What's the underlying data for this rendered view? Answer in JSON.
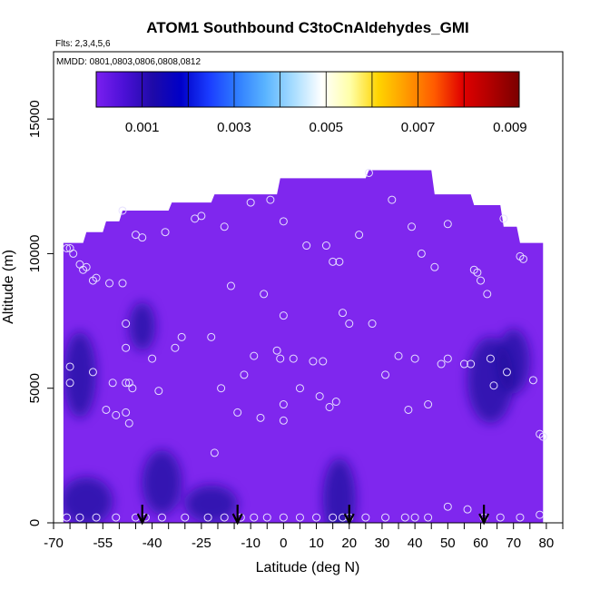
{
  "chart_data": {
    "type": "heatmap",
    "title": "ATOM1 Southbound C3toCnAldehydes_GMI",
    "flights_note": "Flts: 2,3,4,5,6",
    "dates_note": "MMDD: 0801,0803,0806,0808,0812",
    "xlabel": "Latitude (deg N)",
    "ylabel": "Altitude (m)",
    "xlim": [
      -70,
      85
    ],
    "ylim": [
      0,
      17500
    ],
    "x_ticks": [
      "-70",
      "-55",
      "-40",
      "-25",
      "-10",
      "0",
      "10",
      "20",
      "30",
      "40",
      "50",
      "60",
      "70",
      "80"
    ],
    "x_tick_values": [
      -70,
      -55,
      -40,
      -25,
      -10,
      0,
      10,
      20,
      30,
      40,
      50,
      60,
      70,
      80
    ],
    "x_minor_ticks": [
      -65,
      -60,
      -50,
      -45,
      -35,
      -30,
      -20,
      -15,
      -5,
      5,
      15,
      25,
      35,
      45,
      55,
      65,
      75,
      85
    ],
    "y_ticks": [
      "0",
      "5000",
      "10000",
      "15000"
    ],
    "y_tick_values": [
      0,
      5000,
      10000,
      15000
    ],
    "colorbar": {
      "range": [
        0,
        0.0092
      ],
      "tick_labels": [
        "0.001",
        "0.003",
        "0.005",
        "0.007",
        "0.009"
      ],
      "tick_values": [
        0.001,
        0.003,
        0.005,
        0.007,
        0.009
      ],
      "colors": [
        "#7a1ff0",
        "#4b10d6",
        "#1e0aa8",
        "#0000c8",
        "#1a3cff",
        "#2f7dff",
        "#5ab4ff",
        "#a8ddff",
        "#ffffff",
        "#ffffa8",
        "#ffd400",
        "#ff9a00",
        "#ff5a00",
        "#e00000",
        "#b00000",
        "#7a0000"
      ]
    },
    "background_color": "#7f27ee",
    "dark_color": "#1c0a9e",
    "curtain_profile": [
      {
        "lat": -67,
        "top": 10400
      },
      {
        "lat": -61,
        "top": 10400
      },
      {
        "lat": -60,
        "top": 10800
      },
      {
        "lat": -55,
        "top": 10800
      },
      {
        "lat": -54,
        "top": 11200
      },
      {
        "lat": -50,
        "top": 11200
      },
      {
        "lat": -49,
        "top": 11600
      },
      {
        "lat": -35,
        "top": 11600
      },
      {
        "lat": -34,
        "top": 11900
      },
      {
        "lat": -22,
        "top": 11900
      },
      {
        "lat": -21,
        "top": 12200
      },
      {
        "lat": -2,
        "top": 12200
      },
      {
        "lat": -1,
        "top": 12800
      },
      {
        "lat": 25,
        "top": 12800
      },
      {
        "lat": 26,
        "top": 13100
      },
      {
        "lat": 45,
        "top": 13100
      },
      {
        "lat": 46,
        "top": 12200
      },
      {
        "lat": 57,
        "top": 12200
      },
      {
        "lat": 58,
        "top": 11800
      },
      {
        "lat": 66,
        "top": 11800
      },
      {
        "lat": 67,
        "top": 11000
      },
      {
        "lat": 71,
        "top": 11000
      },
      {
        "lat": 72,
        "top": 10400
      },
      {
        "lat": 79,
        "top": 10400
      }
    ],
    "dark_regions": [
      {
        "lat": -43,
        "alt": 7300,
        "rlat": 4,
        "ralt": 900
      },
      {
        "lat": -62,
        "alt": 5500,
        "rlat": 5,
        "ralt": 1600
      },
      {
        "lat": 63,
        "alt": 5300,
        "rlat": 7,
        "ralt": 1600
      },
      {
        "lat": 70,
        "alt": 6000,
        "rlat": 5,
        "ralt": 1200
      },
      {
        "lat": -22,
        "alt": 700,
        "rlat": 8,
        "ralt": 700
      },
      {
        "lat": -60,
        "alt": 800,
        "rlat": 8,
        "ralt": 900
      },
      {
        "lat": 17,
        "alt": 900,
        "rlat": 5,
        "ralt": 1500
      },
      {
        "lat": -37,
        "alt": 1500,
        "rlat": 6,
        "ralt": 1200
      }
    ],
    "arrows_lat": [
      -43,
      -14,
      20,
      61
    ],
    "points": [
      [
        -66,
        10200
      ],
      [
        -65,
        10200
      ],
      [
        -64,
        10000
      ],
      [
        -62,
        9600
      ],
      [
        -61,
        9400
      ],
      [
        -60,
        9500
      ],
      [
        -58,
        9000
      ],
      [
        -57,
        9100
      ],
      [
        -53,
        8900
      ],
      [
        -49,
        8900
      ],
      [
        -49,
        11600
      ],
      [
        -48,
        7400
      ],
      [
        -48,
        6500
      ],
      [
        -48,
        5200
      ],
      [
        -47,
        5200
      ],
      [
        -47,
        3700
      ],
      [
        -45,
        10700
      ],
      [
        -43,
        10600
      ],
      [
        -40,
        6100
      ],
      [
        -38,
        4900
      ],
      [
        -36,
        10800
      ],
      [
        -33,
        6500
      ],
      [
        -31,
        6900
      ],
      [
        -27,
        11300
      ],
      [
        -25,
        11400
      ],
      [
        -22,
        6900
      ],
      [
        -21,
        2600
      ],
      [
        -19,
        5000
      ],
      [
        -18,
        11000
      ],
      [
        -16,
        8800
      ],
      [
        -14,
        4100
      ],
      [
        -12,
        5500
      ],
      [
        -10,
        11900
      ],
      [
        -9,
        6200
      ],
      [
        -7,
        3900
      ],
      [
        -6,
        8500
      ],
      [
        -4,
        12000
      ],
      [
        -2,
        6400
      ],
      [
        -1,
        6100
      ],
      [
        0,
        7700
      ],
      [
        0,
        4400
      ],
      [
        0,
        3800
      ],
      [
        0,
        11200
      ],
      [
        3,
        6100
      ],
      [
        5,
        5000
      ],
      [
        7,
        10300
      ],
      [
        9,
        6000
      ],
      [
        11,
        4700
      ],
      [
        12,
        6000
      ],
      [
        13,
        10300
      ],
      [
        14,
        4300
      ],
      [
        15,
        9700
      ],
      [
        16,
        4500
      ],
      [
        17,
        9700
      ],
      [
        18,
        7800
      ],
      [
        20,
        7400
      ],
      [
        23,
        10700
      ],
      [
        26,
        13000
      ],
      [
        27,
        7400
      ],
      [
        31,
        5500
      ],
      [
        33,
        12000
      ],
      [
        35,
        6200
      ],
      [
        38,
        4200
      ],
      [
        39,
        11000
      ],
      [
        40,
        6100
      ],
      [
        42,
        10000
      ],
      [
        44,
        4400
      ],
      [
        46,
        9500
      ],
      [
        48,
        5900
      ],
      [
        50,
        11100
      ],
      [
        50,
        6100
      ],
      [
        55,
        5900
      ],
      [
        57,
        5900
      ],
      [
        58,
        9400
      ],
      [
        59,
        9300
      ],
      [
        60,
        9000
      ],
      [
        62,
        8500
      ],
      [
        63,
        6100
      ],
      [
        64,
        5100
      ],
      [
        67,
        11300
      ],
      [
        68,
        5600
      ],
      [
        72,
        9900
      ],
      [
        73,
        9800
      ],
      [
        76,
        5300
      ],
      [
        78,
        3300
      ],
      [
        79,
        3200
      ],
      [
        -65,
        5800
      ],
      [
        -65,
        5200
      ],
      [
        -58,
        5600
      ],
      [
        -54,
        4200
      ],
      [
        -52,
        5200
      ],
      [
        -51,
        4000
      ],
      [
        -48,
        4100
      ],
      [
        -46,
        5000
      ],
      [
        -66,
        200
      ],
      [
        -62,
        200
      ],
      [
        -57,
        200
      ],
      [
        -51,
        200
      ],
      [
        -45,
        200
      ],
      [
        -42,
        200
      ],
      [
        -37,
        200
      ],
      [
        -30,
        200
      ],
      [
        -23,
        200
      ],
      [
        -18,
        200
      ],
      [
        -13,
        200
      ],
      [
        -9,
        200
      ],
      [
        -5,
        200
      ],
      [
        0,
        200
      ],
      [
        5,
        200
      ],
      [
        10,
        200
      ],
      [
        15,
        200
      ],
      [
        18,
        200
      ],
      [
        20,
        200
      ],
      [
        25,
        200
      ],
      [
        31,
        200
      ],
      [
        37,
        200
      ],
      [
        40,
        200
      ],
      [
        44,
        200
      ],
      [
        50,
        600
      ],
      [
        56,
        500
      ],
      [
        61,
        200
      ],
      [
        66,
        200
      ],
      [
        72,
        200
      ],
      [
        78,
        300
      ]
    ]
  }
}
